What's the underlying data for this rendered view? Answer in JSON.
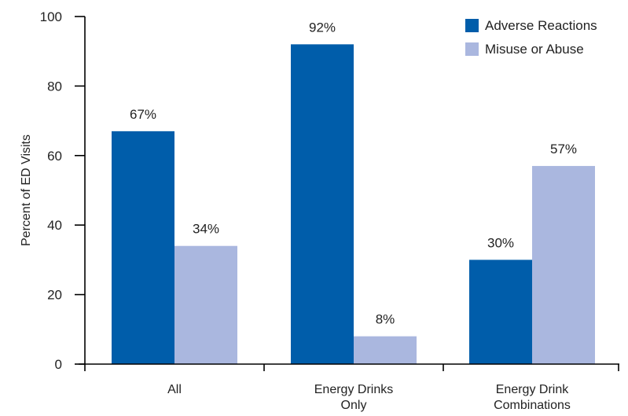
{
  "chart_data": {
    "type": "bar",
    "categories": [
      [
        "All"
      ],
      [
        "Energy Drinks",
        "Only"
      ],
      [
        "Energy Drink",
        "Combinations"
      ]
    ],
    "series": [
      {
        "name": "Adverse Reactions",
        "values": [
          67,
          92,
          30
        ],
        "labels": [
          "67%",
          "92%",
          "30%"
        ],
        "color": "#005daa"
      },
      {
        "name": "Misuse or Abuse",
        "values": [
          34,
          8,
          57
        ],
        "labels": [
          "34%",
          "8%",
          "57%"
        ],
        "color": "#aab7df"
      }
    ],
    "ylabel": "Percent of ED Visits",
    "xlabel": "",
    "ylim": [
      0,
      100
    ],
    "yticks": [
      0,
      20,
      40,
      60,
      80,
      100
    ],
    "grid": false,
    "legend_position": "top-right"
  }
}
